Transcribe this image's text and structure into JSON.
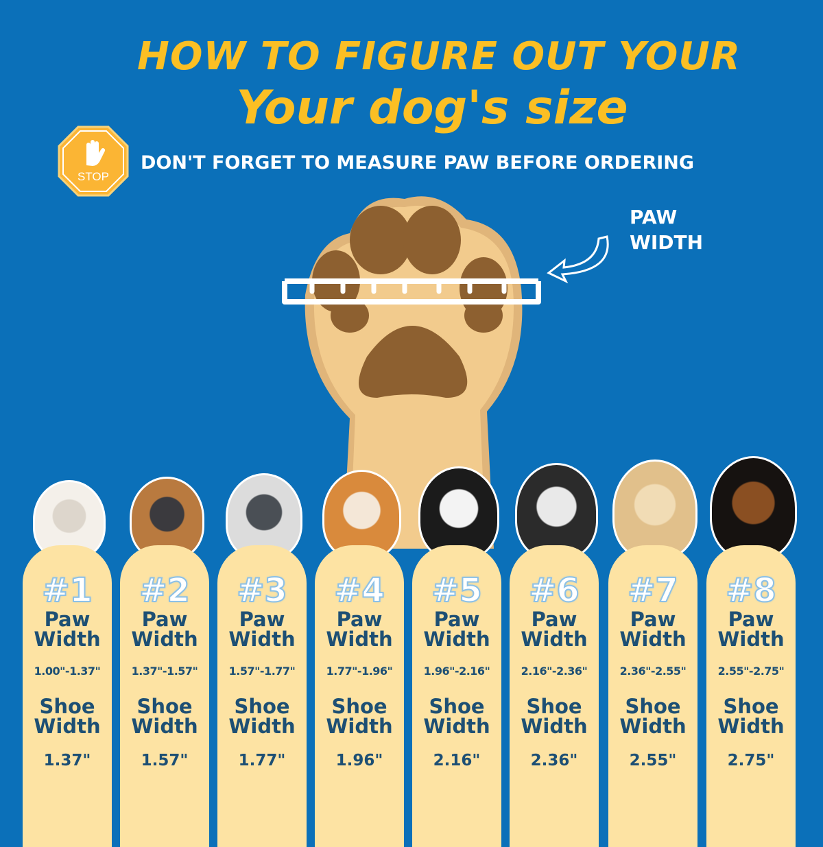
{
  "header": {
    "line1": "HOW TO FIGURE OUT YOUR",
    "line2": "Your dog's size"
  },
  "warning": {
    "stop_sign": "STOP",
    "text": "DON'T FORGET TO MEASURE PAW BEFORE ORDERING"
  },
  "diagram": {
    "paw_width_label_1": "PAW",
    "paw_width_label_2": "WIDTH"
  },
  "colors": {
    "background": "#0b70b9",
    "title": "#fbbf24",
    "card": "#fde3a3",
    "card_text": "#1d4f74"
  },
  "sizes": [
    {
      "number": "#1",
      "paw_label_1": "Paw",
      "paw_label_2": "Width",
      "paw_range": "1.00\"-1.37\"",
      "shoe_label_1": "Shoe",
      "shoe_label_2": "Width",
      "shoe_width": "1.37\""
    },
    {
      "number": "#2",
      "paw_label_1": "Paw",
      "paw_label_2": "Width",
      "paw_range": "1.37\"-1.57\"",
      "shoe_label_1": "Shoe",
      "shoe_label_2": "Width",
      "shoe_width": "1.57\""
    },
    {
      "number": "#3",
      "paw_label_1": "Paw",
      "paw_label_2": "Width",
      "paw_range": "1.57\"-1.77\"",
      "shoe_label_1": "Shoe",
      "shoe_label_2": "Width",
      "shoe_width": "1.77\""
    },
    {
      "number": "#4",
      "paw_label_1": "Paw",
      "paw_label_2": "Width",
      "paw_range": "1.77\"-1.96\"",
      "shoe_label_1": "Shoe",
      "shoe_label_2": "Width",
      "shoe_width": "1.96\""
    },
    {
      "number": "#5",
      "paw_label_1": "Paw",
      "paw_label_2": "Width",
      "paw_range": "1.96\"-2.16\"",
      "shoe_label_1": "Shoe",
      "shoe_label_2": "Width",
      "shoe_width": "2.16\""
    },
    {
      "number": "#6",
      "paw_label_1": "Paw",
      "paw_label_2": "Width",
      "paw_range": "2.16\"-2.36\"",
      "shoe_label_1": "Shoe",
      "shoe_label_2": "Width",
      "shoe_width": "2.36\""
    },
    {
      "number": "#7",
      "paw_label_1": "Paw",
      "paw_label_2": "Width",
      "paw_range": "2.36\"-2.55\"",
      "shoe_label_1": "Shoe",
      "shoe_label_2": "Width",
      "shoe_width": "2.55\""
    },
    {
      "number": "#8",
      "paw_label_1": "Paw",
      "paw_label_2": "Width",
      "paw_range": "2.55\"-2.75\"",
      "shoe_label_1": "Shoe",
      "shoe_label_2": "Width",
      "shoe_width": "2.75\""
    }
  ]
}
